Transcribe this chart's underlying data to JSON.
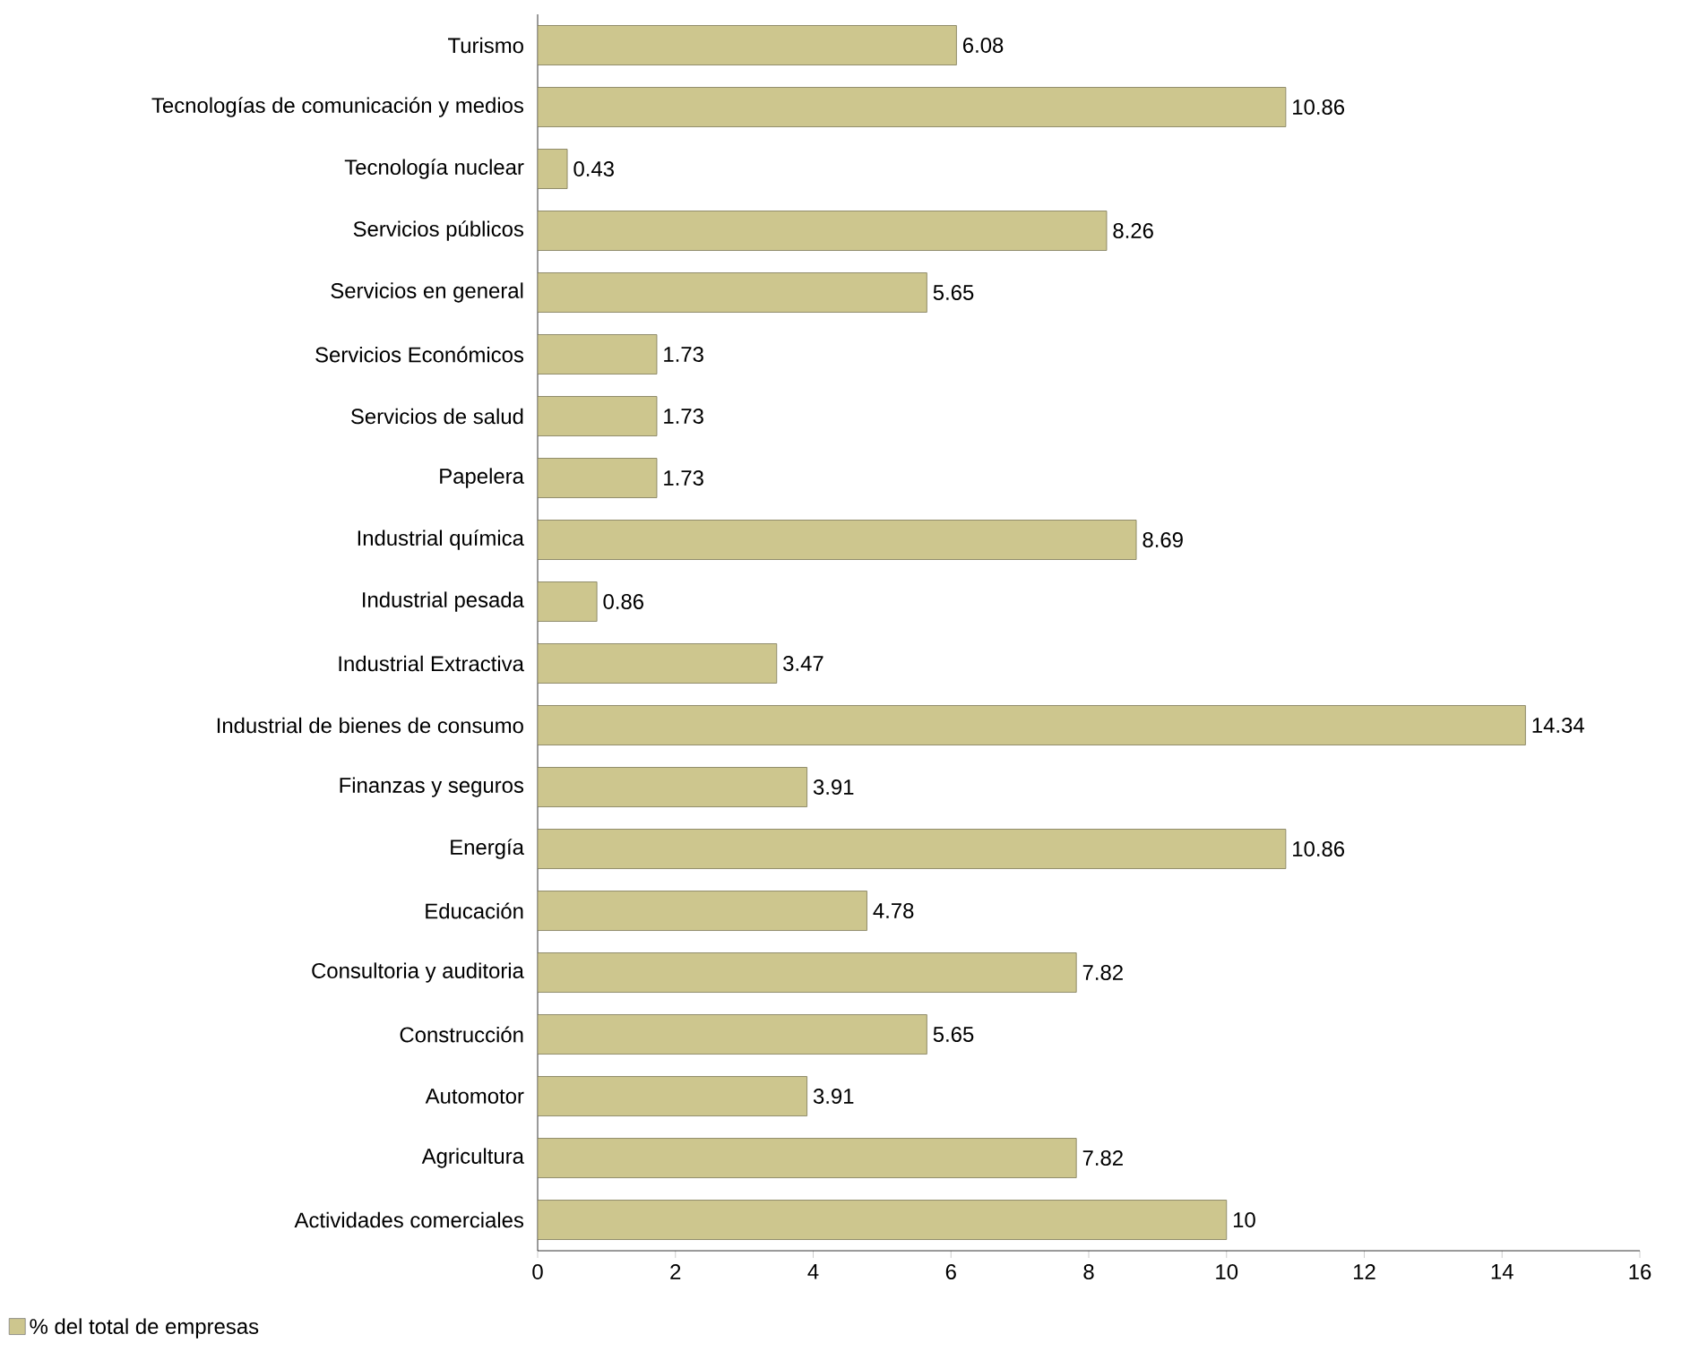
{
  "chart_data": {
    "type": "bar",
    "orientation": "horizontal",
    "categories": [
      "Turismo",
      "Tecnologías de comunicación y medios",
      "Tecnología nuclear",
      "Servicios públicos",
      "Servicios en general",
      "Servicios Económicos",
      "Servicios de salud",
      "Papelera",
      "Industrial química",
      "Industrial pesada",
      "Industrial Extractiva",
      "Industrial de bienes de consumo",
      "Finanzas y seguros",
      "Energía",
      "Educación",
      "Consultoria y auditoria",
      "Construcción",
      "Automotor",
      "Agricultura",
      "Actividades comerciales"
    ],
    "series": [
      {
        "name": "% del total de empresas",
        "color": "#cdc68e",
        "values": [
          6.08,
          10.86,
          0.43,
          8.26,
          5.65,
          1.73,
          1.73,
          1.73,
          8.69,
          0.86,
          3.47,
          14.34,
          3.91,
          10.86,
          4.78,
          7.82,
          5.65,
          3.91,
          7.82,
          10
        ]
      }
    ],
    "xlim": [
      0,
      16
    ],
    "xticks": [
      0,
      2,
      4,
      6,
      8,
      10,
      12,
      14,
      16
    ],
    "data_labels": true,
    "legend": "bottom left",
    "grid": false
  }
}
